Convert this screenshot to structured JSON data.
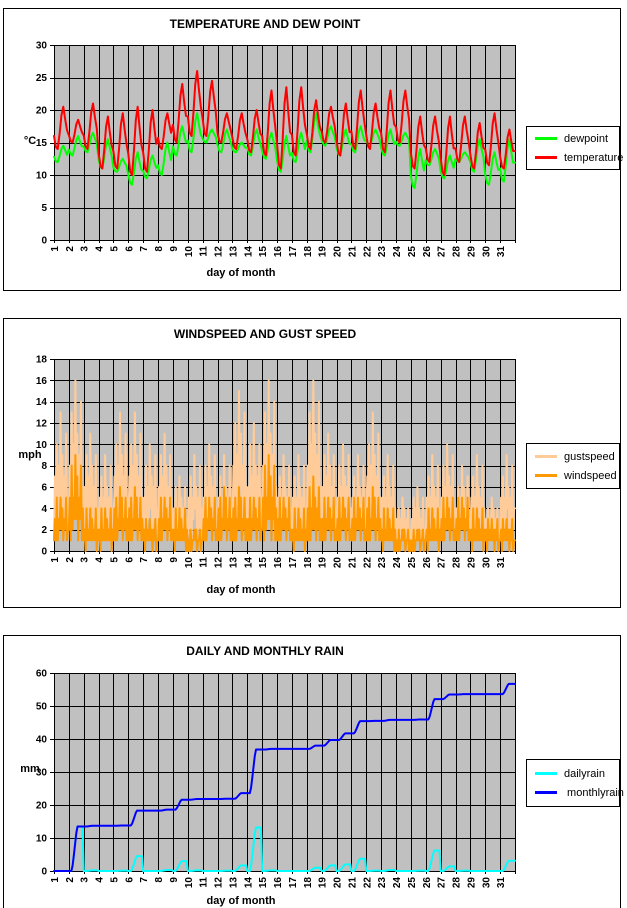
{
  "chart_data": [
    {
      "type": "line",
      "title": "TEMPERATURE AND DEW POINT",
      "xlabel": "day of month",
      "ylabel": "°C",
      "ylim": [
        0,
        30
      ],
      "yticks": [
        0,
        5,
        10,
        15,
        20,
        25,
        30
      ],
      "x_days": [
        "1",
        "2",
        "3",
        "4",
        "5",
        "6",
        "7",
        "8",
        "9",
        "10",
        "11",
        "12",
        "13",
        "14",
        "15",
        "16",
        "17",
        "18",
        "19",
        "20",
        "21",
        "22",
        "23",
        "24",
        "25",
        "26",
        "27",
        "28",
        "29",
        "30",
        "31"
      ],
      "plot_bg": "#C0C0C0",
      "grid_color": "#000000",
      "legend_position": "right",
      "grid": "on",
      "mode": "minmax",
      "samples_per_day": 8,
      "diurnal_profile": [
        0.3,
        0.05,
        0,
        0.35,
        0.8,
        1,
        0.7,
        0.45
      ],
      "series": [
        {
          "name": "dewpoint",
          "color": "#00FF00",
          "daily_min": [
            12,
            13,
            13.5,
            11,
            10.5,
            8.5,
            9.5,
            10,
            13,
            13.5,
            15,
            13.5,
            13.5,
            13,
            12.5,
            10.5,
            12,
            13.5,
            14.5,
            13,
            13.5,
            14.5,
            13,
            14.5,
            8,
            11.5,
            9.5,
            12,
            10.5,
            8.5,
            9
          ],
          "daily_max": [
            14.5,
            16,
            16.5,
            15.5,
            12.5,
            13.5,
            13,
            15,
            17.5,
            19.5,
            17,
            17,
            15,
            17,
            16.5,
            16,
            16.5,
            19.5,
            17.5,
            17,
            17.5,
            17,
            17,
            16.5,
            14,
            14,
            13,
            13.5,
            15.5,
            13.5,
            15.5
          ]
        },
        {
          "name": "temperature",
          "color": "#FF0000",
          "daily_min": [
            14,
            15,
            14,
            11,
            11,
            10,
            10.5,
            14,
            15,
            16,
            16,
            15,
            14,
            13.5,
            13,
            11,
            13,
            14,
            15,
            13,
            14,
            14,
            13.5,
            15,
            11,
            12,
            10,
            12,
            11,
            11.5,
            11
          ],
          "daily_max": [
            20.5,
            18.5,
            21,
            19,
            19.5,
            20.5,
            20,
            19.5,
            24,
            26,
            24.5,
            19.5,
            19.5,
            20,
            23,
            23.5,
            23.5,
            21.5,
            20.5,
            21,
            23,
            21,
            23,
            23,
            19,
            19,
            19,
            19,
            18,
            19.5,
            17
          ]
        }
      ]
    },
    {
      "type": "line",
      "title": "WINDSPEED AND GUST SPEED",
      "xlabel": "day of month",
      "ylabel": "mph",
      "ylim": [
        0,
        18
      ],
      "yticks": [
        0,
        2,
        4,
        6,
        8,
        10,
        12,
        14,
        16,
        18
      ],
      "x_days": [
        "1",
        "2",
        "3",
        "4",
        "5",
        "6",
        "7",
        "8",
        "9",
        "10",
        "11",
        "12",
        "13",
        "14",
        "15",
        "16",
        "17",
        "18",
        "19",
        "20",
        "21",
        "22",
        "23",
        "24",
        "25",
        "26",
        "27",
        "28",
        "29",
        "30",
        "31"
      ],
      "plot_bg": "#C0C0C0",
      "grid_color": "#000000",
      "legend_position": "right",
      "grid": "on",
      "mode": "peaks",
      "samples_per_day": 16,
      "quantize": 1,
      "series": [
        {
          "name": "gustspeed",
          "color": "#FFCC99",
          "profile": [
            0.1,
            0.5,
            0.2,
            0.8,
            0.15,
            0.6,
            0.3,
            1.0,
            0.4,
            0.7,
            0.1,
            0.55,
            0.25,
            0.85,
            0.2,
            0.4
          ],
          "daily_peak": [
            13,
            16,
            11,
            9,
            13,
            13,
            10,
            11,
            7,
            9,
            10,
            9,
            15,
            12,
            16,
            9,
            9,
            16,
            11,
            10,
            9,
            13,
            9,
            5,
            6,
            9,
            10,
            8,
            9,
            5,
            9
          ]
        },
        {
          "name": "windspeed",
          "color": "#FF9900",
          "profile": [
            0.2,
            0.6,
            0.1,
            0.9,
            0.2,
            0.5,
            0.35,
            1.0,
            0.3,
            0.75,
            0.15,
            0.5,
            0.3,
            0.9,
            0.1,
            0.45
          ],
          "daily_peak": [
            5,
            9,
            4,
            4,
            6,
            6,
            3,
            5,
            4,
            2,
            5,
            6,
            6,
            5,
            9,
            5,
            4,
            7,
            5,
            5,
            5,
            6,
            4,
            2,
            2,
            4,
            5,
            5,
            4,
            3,
            3
          ]
        }
      ]
    },
    {
      "type": "line",
      "title": "DAILY AND MONTHLY RAIN",
      "xlabel": "day of month",
      "ylabel": "mm",
      "ylim": [
        0,
        60
      ],
      "yticks": [
        0,
        10,
        20,
        30,
        40,
        50,
        60
      ],
      "x_days": [
        "1",
        "2",
        "3",
        "4",
        "5",
        "6",
        "7",
        "8",
        "9",
        "10",
        "11",
        "12",
        "13",
        "14",
        "15",
        "16",
        "17",
        "18",
        "19",
        "20",
        "21",
        "22",
        "23",
        "24",
        "25",
        "26",
        "27",
        "28",
        "29",
        "30",
        "31"
      ],
      "plot_bg": "#C0C0C0",
      "grid_color": "#000000",
      "legend_position": "right",
      "grid": "on",
      "mode": "rain",
      "samples_per_day": 12,
      "ramp_profile": [
        0,
        0,
        0,
        0.12,
        0.35,
        0.6,
        0.85,
        1,
        1,
        1,
        1,
        1
      ],
      "series": [
        {
          "name": "dailyrain",
          "color": "#00FFFF",
          "kind": "daily",
          "daily_total": [
            0,
            13.5,
            0.2,
            0,
            0.1,
            4.5,
            0,
            0.3,
            3.0,
            0.2,
            0,
            0.1,
            1.7,
            13.2,
            0.2,
            0,
            0,
            1.0,
            1.7,
            2.0,
            3.7,
            0.1,
            0.3,
            0,
            0.1,
            6.2,
            1.4,
            0.1,
            0,
            0,
            3.1
          ]
        },
        {
          "name": " monthlyrain",
          "color": "#0000FF",
          "kind": "cumulative",
          "cumulative": [
            0,
            13.5,
            13.7,
            13.7,
            13.8,
            18.3,
            18.3,
            18.6,
            21.6,
            21.8,
            21.8,
            21.9,
            23.6,
            36.8,
            37,
            37,
            37,
            38,
            39.7,
            41.7,
            45.4,
            45.5,
            45.8,
            45.8,
            45.9,
            52.1,
            53.5,
            53.6,
            53.6,
            53.6,
            56.7
          ]
        }
      ]
    }
  ]
}
